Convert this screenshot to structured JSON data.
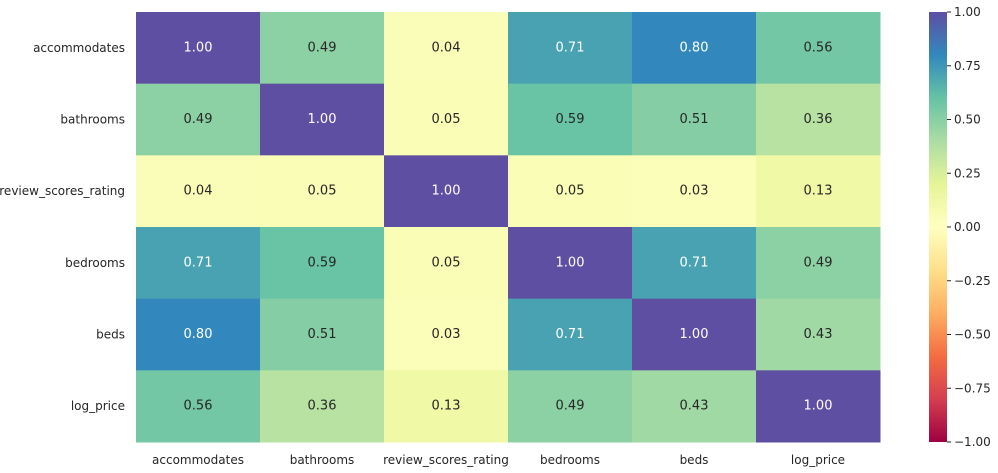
{
  "chart_data": {
    "type": "heatmap",
    "title": "",
    "xlabel": "",
    "ylabel": "",
    "rows": [
      "accommodates",
      "bathrooms",
      "review_scores_rating",
      "bedrooms",
      "beds",
      "log_price"
    ],
    "columns": [
      "accommodates",
      "bathrooms",
      "review_scores_rating",
      "bedrooms",
      "beds",
      "log_price"
    ],
    "values": [
      [
        1.0,
        0.49,
        0.04,
        0.71,
        0.8,
        0.56
      ],
      [
        0.49,
        1.0,
        0.05,
        0.59,
        0.51,
        0.36
      ],
      [
        0.04,
        0.05,
        1.0,
        0.05,
        0.03,
        0.13
      ],
      [
        0.71,
        0.59,
        0.05,
        1.0,
        0.71,
        0.49
      ],
      [
        0.8,
        0.51,
        0.03,
        0.71,
        1.0,
        0.43
      ],
      [
        0.56,
        0.36,
        0.13,
        0.49,
        0.43,
        1.0
      ]
    ],
    "value_labels": [
      [
        "1.00",
        "0.49",
        "0.04",
        "0.71",
        "0.80",
        "0.56"
      ],
      [
        "0.49",
        "1.00",
        "0.05",
        "0.59",
        "0.51",
        "0.36"
      ],
      [
        "0.04",
        "0.05",
        "1.00",
        "0.05",
        "0.03",
        "0.13"
      ],
      [
        "0.71",
        "0.59",
        "0.05",
        "1.00",
        "0.71",
        "0.49"
      ],
      [
        "0.80",
        "0.51",
        "0.03",
        "0.71",
        "1.00",
        "0.43"
      ],
      [
        "0.56",
        "0.36",
        "0.13",
        "0.49",
        "0.43",
        "1.00"
      ]
    ],
    "vmin": -1.0,
    "vmax": 1.0,
    "colormap": "Spectral",
    "colormap_stops": [
      "#9e0142",
      "#d53e4f",
      "#f46d43",
      "#fdae61",
      "#fee08b",
      "#ffffbf",
      "#e6f598",
      "#abdda4",
      "#66c2a5",
      "#3288bd",
      "#5e4fa2"
    ],
    "colorbar_ticks": [
      1.0,
      0.75,
      0.5,
      0.25,
      0.0,
      -0.25,
      -0.5,
      -0.75,
      -1.0
    ],
    "colorbar_tick_labels": [
      "1.00",
      "0.75",
      "0.50",
      "0.25",
      "0.00",
      "−0.25",
      "−0.50",
      "−0.75",
      "−1.00"
    ],
    "colorbar_position": "right",
    "grid": false
  }
}
